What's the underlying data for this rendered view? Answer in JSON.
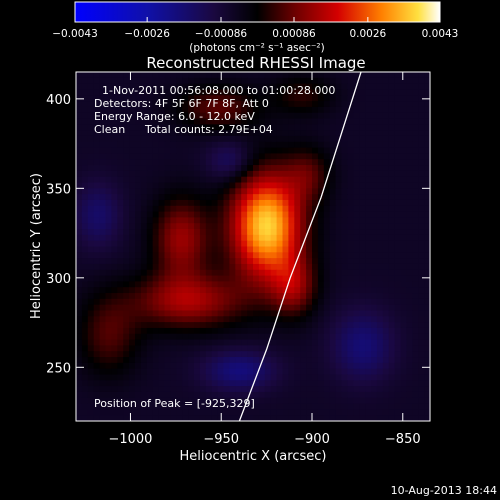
{
  "chart_data": {
    "type": "heatmap",
    "title": "Reconstructed RHESSI Image",
    "xlabel": "Heliocentric X (arcsec)",
    "ylabel": "Heliocentric Y (arcsec)",
    "xlim": [
      -1030,
      -835
    ],
    "ylim": [
      220,
      415
    ],
    "x_ticks": [
      -1000,
      -950,
      -900,
      -850
    ],
    "y_ticks": [
      250,
      300,
      350,
      400
    ],
    "x_tick_labels": [
      "−1000",
      "−950",
      "−900",
      "−850"
    ],
    "y_tick_labels": [
      "250",
      "300",
      "350",
      "400"
    ],
    "colorbar": {
      "min": -0.0043,
      "max": 0.0043,
      "ticks": [
        -0.0043,
        -0.0026,
        -0.00086,
        0.00086,
        0.0026,
        0.0043
      ],
      "tick_labels": [
        "−0.0043",
        "−0.0026",
        "−0.00086",
        "0.00086",
        "0.0026",
        "0.0043"
      ],
      "unit_label": "(photons cm⁻² s⁻¹ asec⁻²)"
    },
    "annotations": {
      "time": "1-Nov-2011 00:56:08.000 to 01:00:28.000",
      "detectors": "Detectors: 4F 5F 6F 7F 8F, Att 0",
      "energy": "Energy Range: 6.0 - 12.0 keV",
      "clean": "Clean",
      "counts": "Total counts: 2.79E+04",
      "peak": "Position of Peak = [-925,329]"
    },
    "peak_position": [
      -925,
      329
    ],
    "limb_curve": [
      [
        -940,
        220
      ],
      [
        -925,
        260
      ],
      [
        -912,
        300
      ],
      [
        -895,
        345
      ],
      [
        -873,
        415
      ]
    ],
    "sources": [
      {
        "x": -925,
        "y": 329,
        "sx": 14,
        "sy": 21,
        "amp": 0.0043
      },
      {
        "x": -972,
        "y": 322,
        "sx": 11,
        "sy": 16,
        "amp": 0.0019
      },
      {
        "x": -968,
        "y": 287,
        "sx": 22,
        "sy": 11,
        "amp": 0.002
      },
      {
        "x": -910,
        "y": 295,
        "sx": 9,
        "sy": 12,
        "amp": 0.0016
      },
      {
        "x": -902,
        "y": 358,
        "sx": 9,
        "sy": 11,
        "amp": 0.0011
      },
      {
        "x": -1012,
        "y": 268,
        "sx": 12,
        "sy": 16,
        "amp": 0.0012
      },
      {
        "x": -952,
        "y": 395,
        "sx": 16,
        "sy": 9,
        "amp": 0.0013
      },
      {
        "x": -905,
        "y": 402,
        "sx": 12,
        "sy": 8,
        "amp": 0.0009
      },
      {
        "x": -940,
        "y": 248,
        "sx": 14,
        "sy": 8,
        "amp": -0.0013
      },
      {
        "x": -872,
        "y": 262,
        "sx": 12,
        "sy": 14,
        "amp": -0.0012
      },
      {
        "x": -945,
        "y": 365,
        "sx": 9,
        "sy": 8,
        "amp": -0.001
      },
      {
        "x": -1018,
        "y": 335,
        "sx": 9,
        "sy": 13,
        "amp": -0.001
      }
    ]
  },
  "footer": {
    "date": "10-Aug-2013 18:44"
  }
}
